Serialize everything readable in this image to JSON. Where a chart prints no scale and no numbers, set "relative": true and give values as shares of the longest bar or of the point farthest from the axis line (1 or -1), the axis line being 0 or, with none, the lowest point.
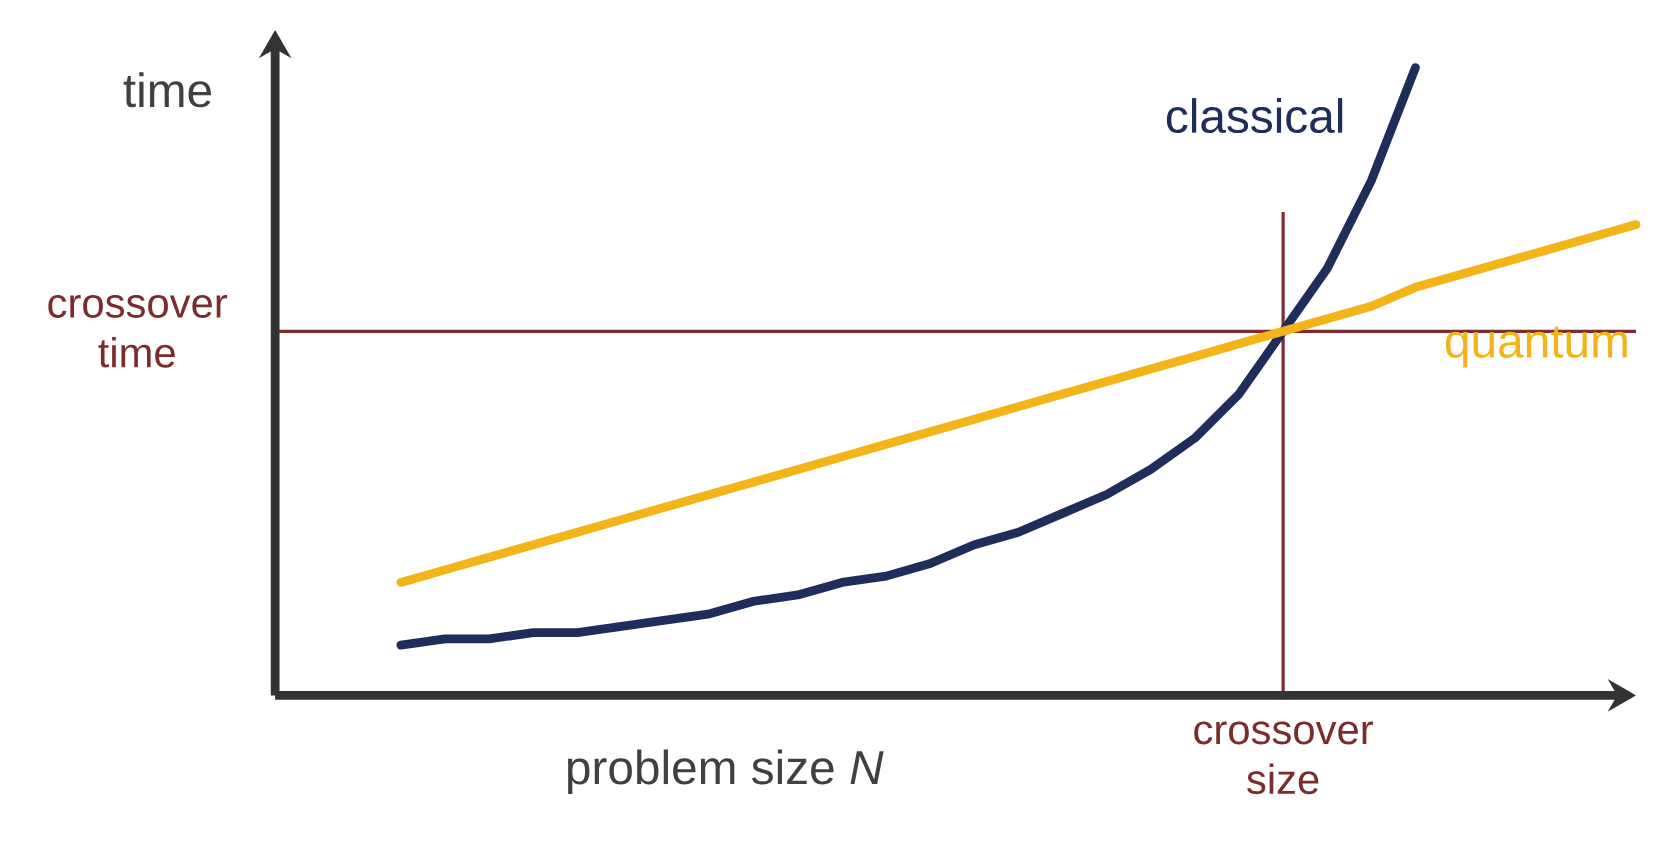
{
  "chart_data": {
    "type": "line",
    "relative": true,
    "xlabel": "problem size *N*",
    "ylabel": "time",
    "categories": [
      null,
      null,
      null,
      null,
      null,
      null,
      null,
      null,
      null,
      null,
      null,
      null,
      null,
      null,
      null,
      null,
      null,
      null,
      null,
      null,
      null,
      null,
      null,
      null,
      null,
      null,
      null,
      null,
      null
    ],
    "series": [
      {
        "name": "classical",
        "color": "#1f2d5a",
        "values": [
          0.08,
          0.09,
          0.09,
          0.1,
          0.1,
          0.11,
          0.12,
          0.13,
          0.15,
          0.16,
          0.18,
          0.19,
          0.21,
          0.24,
          0.26,
          0.29,
          0.32,
          0.36,
          0.41,
          0.48,
          0.58,
          0.68,
          0.82,
          1.0,
          null,
          null,
          null,
          null,
          null
        ]
      },
      {
        "name": "quantum",
        "color": "#f2b418",
        "values": [
          0.18,
          0.2,
          0.22,
          0.24,
          0.26,
          0.28,
          0.3,
          0.32,
          0.34,
          0.36,
          0.38,
          0.4,
          0.42,
          0.44,
          0.46,
          0.48,
          0.5,
          0.52,
          0.54,
          0.56,
          0.58,
          0.6,
          0.62,
          0.65,
          0.67,
          0.69,
          0.71,
          0.73,
          0.75
        ]
      }
    ],
    "ref_lines": [
      {
        "axis": "y",
        "value": 0.58,
        "label": "crossover time",
        "color": "#7b2d2d"
      }
    ],
    "annotations": [
      "crossover size"
    ]
  }
}
